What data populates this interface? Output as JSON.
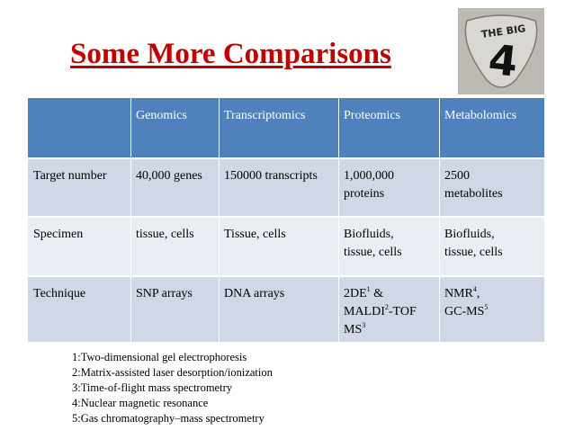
{
  "slide": {
    "title": "Some More Comparisons",
    "logo_text_top": "THE BIG",
    "logo_text_main": "4"
  },
  "table": {
    "headers": [
      "",
      "Genomics",
      "Transcriptomics",
      "Proteomics",
      "Metabolomics"
    ],
    "rows": [
      {
        "label": "Target number",
        "genomics": "40,000 genes",
        "transcriptomics": "150000 transcripts",
        "proteomics_l1": "1,000,000",
        "proteomics_l2": "proteins",
        "metabolomics_l1": "2500",
        "metabolomics_l2": "metabolites"
      },
      {
        "label": "Specimen",
        "genomics": "tissue, cells",
        "transcriptomics": "Tissue, cells",
        "proteomics_l1": "Biofluids,",
        "proteomics_l2": "tissue, cells",
        "metabolomics_l1": "Biofluids,",
        "metabolomics_l2": "tissue, cells"
      },
      {
        "label": "Technique",
        "genomics": "SNP arrays",
        "transcriptomics": "DNA arrays",
        "proteomics_a": "2DE",
        "proteomics_a_sup": "1",
        "proteomics_b": " &",
        "proteomics_c": "MALDI",
        "proteomics_c_sup": "2",
        "proteomics_d": "-TOF",
        "proteomics_e": "MS",
        "proteomics_e_sup": "3",
        "metabolomics_a": "NMR",
        "metabolomics_a_sup": "4",
        "metabolomics_b": ",",
        "metabolomics_c": "GC-MS",
        "metabolomics_c_sup": "5"
      }
    ]
  },
  "footnotes": [
    "1:Two-dimensional gel electrophoresis",
    "2:Matrix-assisted laser desorption/ionization",
    "3:Time-of-flight mass spectrometry",
    "4:Nuclear magnetic resonance",
    "5:Gas chromatography–mass spectrometry"
  ],
  "colors": {
    "title": "#c00000",
    "header_bg": "#4f81bd",
    "row_odd_bg": "#d0d8e8",
    "row_even_bg": "#e9edf4"
  }
}
